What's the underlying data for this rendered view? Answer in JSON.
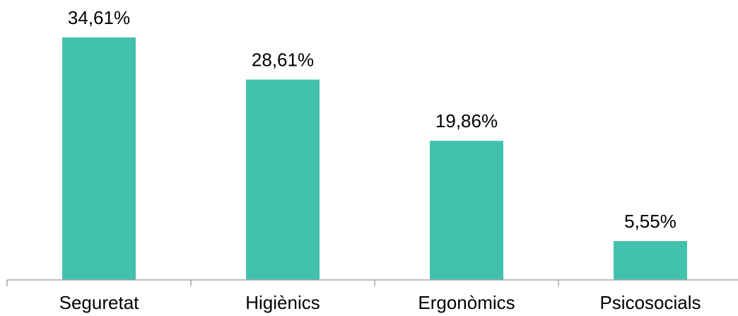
{
  "chart_data": {
    "type": "bar",
    "categories": [
      "Seguretat",
      "Higiènics",
      "Ergonòmics",
      "Psicosocials"
    ],
    "values": [
      34.61,
      28.61,
      19.86,
      5.55
    ],
    "data_labels": [
      "34,61%",
      "28,61%",
      "19,86%",
      "5,55%"
    ],
    "title": "",
    "xlabel": "",
    "ylabel": "",
    "ylim": [
      0,
      34.61
    ],
    "grid": false,
    "legend": "none",
    "colors": {
      "bar": "#42C2AD",
      "axis": "#A6A6A6",
      "text": "#000000"
    }
  }
}
